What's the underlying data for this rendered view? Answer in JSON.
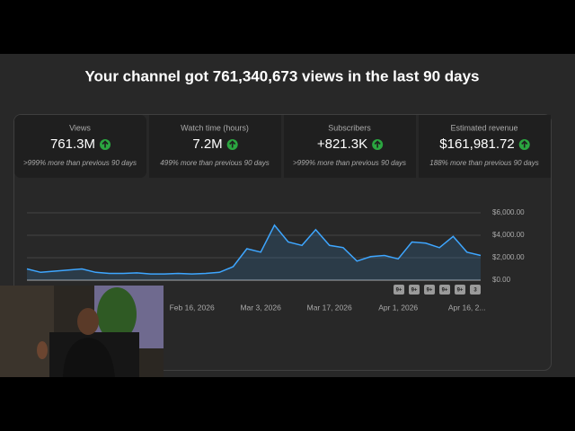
{
  "header": {
    "title": "Your channel got 761,340,673 views in the last 90 days"
  },
  "metrics": [
    {
      "label": "Views",
      "value": "761.3M",
      "change": ">999% more than previous 90 days"
    },
    {
      "label": "Watch time (hours)",
      "value": "7.2M",
      "change": "499% more than previous 90 days"
    },
    {
      "label": "Subscribers",
      "value": "+821.3K",
      "change": ">999% more than previous 90 days"
    },
    {
      "label": "Estimated revenue",
      "value": "$161,981.72",
      "change": "188% more than previous 90 days"
    }
  ],
  "chart_data": {
    "type": "line",
    "categories": [
      null,
      null,
      null,
      null,
      null,
      null,
      null,
      null,
      null,
      null,
      null,
      null,
      "Feb 16, 2026",
      null,
      null,
      null,
      null,
      "Mar 3, 2026",
      null,
      null,
      null,
      null,
      "Mar 17, 2026",
      null,
      null,
      null,
      null,
      "Apr 1, 2026",
      null,
      null,
      null,
      null,
      "Apr 16, 2...",
      null
    ],
    "series": [
      {
        "name": "Estimated revenue",
        "color": "#3ea6ff",
        "values": [
          1000,
          700,
          800,
          900,
          1000,
          700,
          600,
          600,
          650,
          550,
          550,
          600,
          550,
          600,
          700,
          1200,
          2800,
          2500,
          4900,
          3400,
          3100,
          4500,
          3100,
          2900,
          1700,
          2100,
          2200,
          1900,
          3400,
          3300,
          2900,
          3900,
          2500,
          2200
        ]
      }
    ],
    "ylim": [
      0,
      6000
    ],
    "yticks": [
      {
        "value": 0,
        "label": "$0.00"
      },
      {
        "value": 2000,
        "label": "$2,000.00"
      },
      {
        "value": 4000,
        "label": "$4,000.00"
      },
      {
        "value": 6000,
        "label": "$6,000.00"
      }
    ],
    "grid": true,
    "markers": [
      "9+",
      "9+",
      "9+",
      "9+",
      "9+",
      "3"
    ]
  }
}
